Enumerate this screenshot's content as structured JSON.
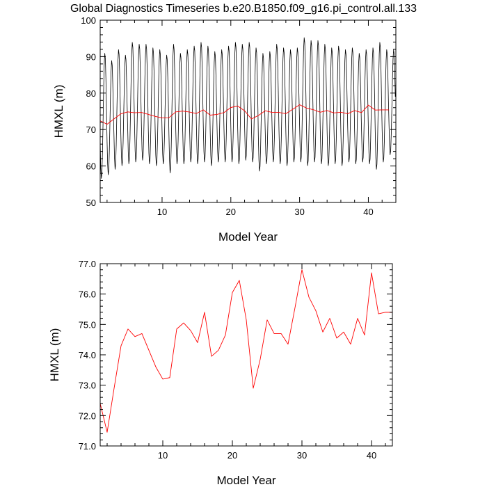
{
  "title": "Global Diagnostics Timeseries b.e20.B1850.f09_g16.pi_control.all.133",
  "chart_data": [
    {
      "type": "line",
      "xlabel": "Model Year",
      "ylabel": "HMXL (m)",
      "xlim": [
        1,
        44
      ],
      "ylim": [
        50,
        100
      ],
      "x_ticks": [
        10,
        20,
        30,
        40
      ],
      "y_ticks": [
        50,
        60,
        70,
        80,
        90,
        100
      ],
      "y_tick_labels": [
        "50",
        "60",
        "70",
        "80",
        "90",
        "100"
      ],
      "grid": false,
      "series": [
        {
          "color": "#000000",
          "monthly_max": [
            91.0,
            89.0,
            92.0,
            90.5,
            94.0,
            93.5,
            93.5,
            92.5,
            92.0,
            90.5,
            93.5,
            91.0,
            92.0,
            93.0,
            94.0,
            93.0,
            91.5,
            92.0,
            93.0,
            94.0,
            93.5,
            94.0,
            92.5,
            91.0,
            91.5,
            93.5,
            92.5,
            92.0,
            92.5,
            95.3,
            94.5,
            94.5,
            93.5,
            92.5,
            93.0,
            92.0,
            92.5,
            91.0,
            92.0,
            92.5,
            94.0,
            92.0,
            92.0
          ],
          "monthly_min": [
            56.5,
            57.5,
            59.0,
            60.0,
            60.5,
            61.0,
            61.5,
            60.5,
            60.0,
            60.5,
            58.0,
            60.5,
            60.5,
            61.0,
            60.5,
            61.0,
            60.0,
            61.0,
            61.0,
            61.0,
            60.5,
            61.5,
            61.0,
            58.5,
            60.5,
            61.0,
            60.5,
            60.0,
            61.0,
            61.0,
            60.0,
            61.0,
            60.5,
            60.0,
            60.5,
            60.0,
            61.0,
            60.5,
            61.0,
            60.5,
            59.0,
            61.0,
            63.0
          ]
        },
        {
          "color": "#ff0000",
          "x": [
            1,
            2,
            3,
            4,
            5,
            6,
            7,
            8,
            9,
            10,
            11,
            12,
            13,
            14,
            15,
            16,
            17,
            18,
            19,
            20,
            21,
            22,
            23,
            24,
            25,
            26,
            27,
            28,
            29,
            30,
            31,
            32,
            33,
            34,
            35,
            36,
            37,
            38,
            39,
            40,
            41,
            42,
            43
          ],
          "y": [
            72.4,
            71.45,
            72.9,
            74.3,
            74.85,
            74.6,
            74.7,
            74.15,
            73.6,
            73.2,
            73.25,
            74.85,
            75.05,
            74.8,
            74.4,
            75.4,
            73.95,
            74.15,
            74.65,
            76.05,
            76.45,
            75.15,
            72.9,
            73.85,
            75.15,
            74.7,
            74.7,
            74.35,
            75.55,
            76.8,
            75.9,
            75.45,
            74.75,
            75.2,
            74.55,
            74.75,
            74.35,
            75.2,
            74.65,
            76.7,
            75.35,
            75.4,
            75.4
          ]
        }
      ]
    },
    {
      "type": "line",
      "xlabel": "Model Year",
      "ylabel": "HMXL (m)",
      "xlim": [
        1,
        43
      ],
      "ylim": [
        71,
        77
      ],
      "x_ticks": [
        10,
        20,
        30,
        40
      ],
      "y_ticks": [
        71,
        72,
        73,
        74,
        75,
        76,
        77
      ],
      "y_tick_labels": [
        "71.0",
        "72.0",
        "73.0",
        "74.0",
        "75.0",
        "76.0",
        "77.0"
      ],
      "grid": false,
      "series": [
        {
          "color": "#ff0000",
          "x": [
            1,
            2,
            3,
            4,
            5,
            6,
            7,
            8,
            9,
            10,
            11,
            12,
            13,
            14,
            15,
            16,
            17,
            18,
            19,
            20,
            21,
            22,
            23,
            24,
            25,
            26,
            27,
            28,
            29,
            30,
            31,
            32,
            33,
            34,
            35,
            36,
            37,
            38,
            39,
            40,
            41,
            42,
            43
          ],
          "y": [
            72.4,
            71.45,
            72.9,
            74.3,
            74.85,
            74.6,
            74.7,
            74.15,
            73.6,
            73.2,
            73.25,
            74.85,
            75.05,
            74.8,
            74.4,
            75.4,
            73.95,
            74.15,
            74.65,
            76.05,
            76.45,
            75.15,
            72.9,
            73.85,
            75.15,
            74.7,
            74.7,
            74.35,
            75.55,
            76.8,
            75.9,
            75.45,
            74.75,
            75.2,
            74.55,
            74.75,
            74.35,
            75.2,
            74.65,
            76.7,
            75.35,
            75.4,
            75.4
          ]
        }
      ]
    }
  ]
}
